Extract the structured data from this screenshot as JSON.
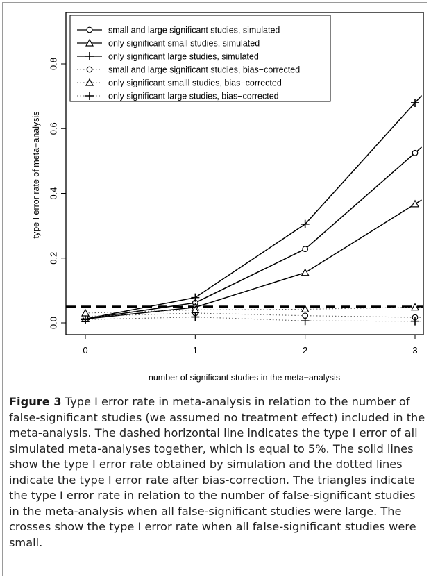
{
  "caption": {
    "label": "Figure 3",
    "text": " Type I error rate in meta-analysis in relation to the number of false-significant studies (we assumed no treatment effect) included in the meta-analysis. The dashed horizontal line indicates the type I error of all simulated meta-analyses together, which is equal to 5%. The solid lines show the type I error rate obtained by simulation and the dotted lines indicate the type I error rate after bias-correction. The triangles indicate the type I error rate in relation to the number of false-significant studies in the meta-analysis when all false-significant studies were large. The crosses show the type I error rate when all false-significant studies were small."
  },
  "chart_data": {
    "type": "line",
    "xlabel": "number of significant studies in the meta−analysis",
    "ylabel": "type I error rate of meta−analysis",
    "x": [
      0,
      1,
      2,
      3
    ],
    "xlim": [
      0,
      3
    ],
    "ylim": [
      0,
      0.8
    ],
    "xticks": [
      0,
      1,
      2,
      3
    ],
    "yticks": [
      0.0,
      0.2,
      0.4,
      0.6,
      0.8
    ],
    "ytick_labels": [
      "0.0",
      "0.2",
      "0.4",
      "0.6",
      "0.8"
    ],
    "grid": false,
    "legend_position": "top-left",
    "series": [
      {
        "name": "small and large significant studies, simulated",
        "marker": "circle",
        "line": "solid",
        "values": [
          0.012,
          0.062,
          0.228,
          0.525
        ]
      },
      {
        "name": "only significant small studies, simulated",
        "marker": "triangle",
        "line": "solid",
        "values": [
          0.012,
          0.048,
          0.155,
          0.367
        ]
      },
      {
        "name": "only significant large studies, simulated",
        "marker": "plus",
        "line": "solid",
        "values": [
          0.012,
          0.078,
          0.305,
          0.68
        ]
      },
      {
        "name": "small and large significant studies, bias−corrected",
        "marker": "circle",
        "line": "dotted",
        "values": [
          0.02,
          0.03,
          0.022,
          0.017
        ]
      },
      {
        "name": "only significant smalll studies, bias−corrected",
        "marker": "triangle",
        "line": "dotted",
        "values": [
          0.03,
          0.04,
          0.042,
          0.048
        ]
      },
      {
        "name": "only significant large studies, bias−corrected",
        "marker": "plus",
        "line": "dotted",
        "values": [
          0.01,
          0.018,
          0.006,
          0.005
        ]
      }
    ],
    "reference_line": {
      "y": 0.05,
      "style": "dashed"
    }
  }
}
